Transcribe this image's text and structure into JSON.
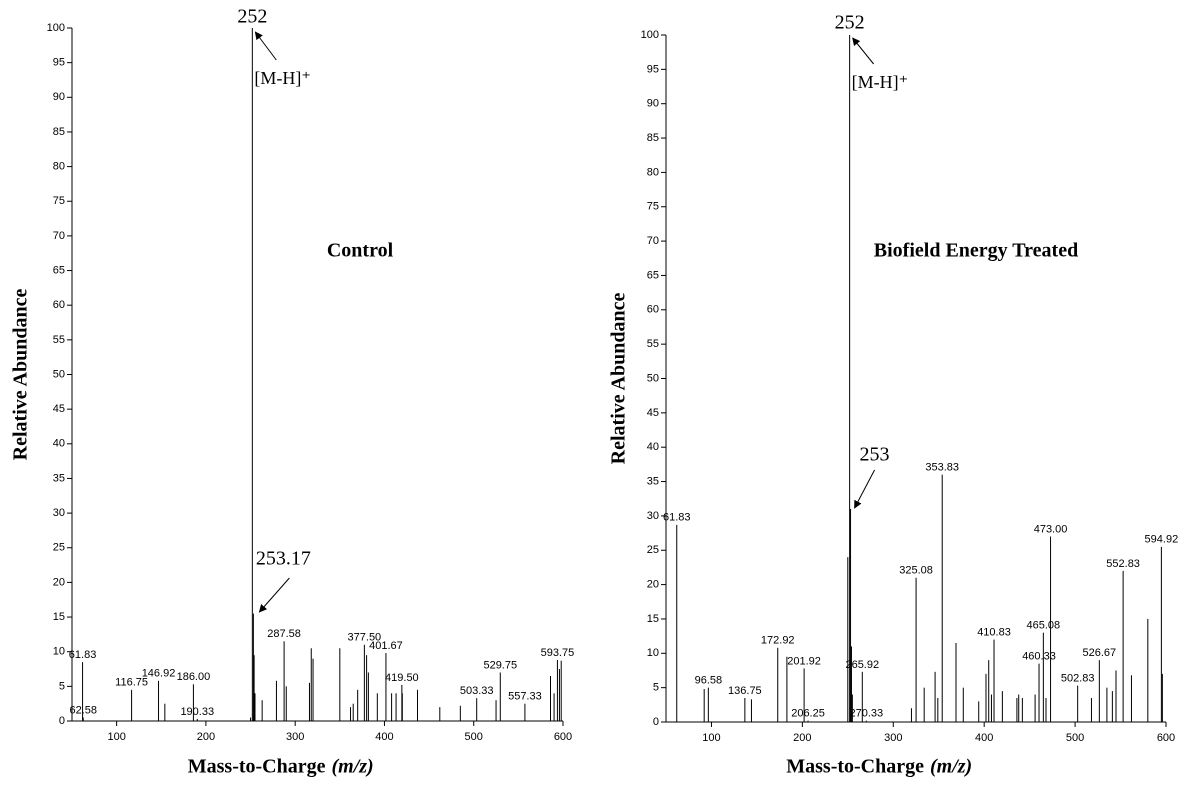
{
  "chart_data": [
    {
      "type": "stem",
      "subtitle": "Control",
      "annotation": "[M-H]⁺",
      "xlabel": "Mass-to-Charge",
      "xunit": "(m/z)",
      "ylabel": "Relative Abundance",
      "xlim": [
        50,
        600
      ],
      "ylim": [
        0,
        100
      ],
      "xticks": [
        100,
        200,
        300,
        400,
        500,
        600
      ],
      "yticks": [
        0,
        5,
        10,
        15,
        20,
        25,
        30,
        35,
        40,
        45,
        50,
        55,
        60,
        65,
        70,
        75,
        80,
        85,
        90,
        95,
        100
      ],
      "series": [
        {
          "color": "#000000",
          "x": [
            252,
            253.17
          ],
          "values": [
            100,
            15.5
          ]
        },
        {
          "color": "#000000",
          "x": [
            61.83,
            62.58,
            116.75,
            146.92,
            186,
            190.33,
            287.58,
            377.5,
            401.67,
            419.5,
            503.33,
            529.75,
            557.33,
            593.75
          ],
          "x_labels": [
            "61.83",
            "62.58",
            "116.75",
            "146.92",
            "186.00",
            "190.33",
            "287.58",
            "377.50",
            "401.67",
            "419.50",
            "503.33",
            "529.75",
            "557.33",
            "593.75"
          ],
          "values": [
            8.5,
            0.5,
            4.5,
            5.8,
            5.3,
            0.3,
            11.5,
            11,
            9.8,
            5.2,
            3.3,
            7,
            2.5,
            8.8
          ]
        },
        {
          "color": "#000000",
          "x": [
            154,
            250,
            254,
            255,
            263,
            279,
            290,
            316,
            318,
            320,
            350,
            362,
            365,
            370,
            380,
            382,
            392,
            408,
            413,
            420,
            437,
            462,
            485,
            525,
            586,
            590,
            596,
            598
          ],
          "values": [
            2.5,
            0.5,
            9.5,
            4,
            3,
            5.8,
            5,
            5.5,
            10.5,
            9,
            10.5,
            2,
            2.5,
            4.5,
            9.5,
            7,
            4,
            4,
            4,
            4,
            4.5,
            2,
            2.2,
            3,
            6.5,
            4,
            7.5,
            8.7
          ]
        }
      ]
    },
    {
      "type": "stem",
      "subtitle": "Biofield Energy Treated",
      "annotation": "[M-H]⁺",
      "xlabel": "Mass-to-Charge",
      "xunit": "(m/z)",
      "ylabel": "Relative Abundance",
      "xlim": [
        50,
        600
      ],
      "ylim": [
        0,
        100
      ],
      "xticks": [
        100,
        200,
        300,
        400,
        500,
        600
      ],
      "yticks": [
        0,
        5,
        10,
        15,
        20,
        25,
        30,
        35,
        40,
        45,
        50,
        55,
        60,
        65,
        70,
        75,
        80,
        85,
        90,
        95,
        100
      ],
      "series": [
        {
          "color": "#000000",
          "x": [
            252,
            253
          ],
          "values": [
            100,
            31
          ]
        },
        {
          "color": "#000000",
          "x": [
            61.83,
            96.58,
            136.75,
            172.92,
            201.92,
            206.25,
            265.92,
            270.33,
            325.08,
            353.83,
            410.83,
            460.33,
            465.08,
            473,
            502.83,
            526.67,
            552.83,
            594.92
          ],
          "x_labels": [
            "61.83",
            "96.58",
            "136.75",
            "172.92",
            "201.92",
            "206.25",
            "265.92",
            "270.33",
            "325.08",
            "353.83",
            "410.83",
            "460.33",
            "465.08",
            "473.00",
            "502.83",
            "526.67",
            "552.83",
            "594.92"
          ],
          "values": [
            28.7,
            5,
            3.5,
            10.8,
            7.8,
            0.2,
            7.3,
            0.2,
            21,
            36,
            12,
            8.5,
            13,
            27,
            5.3,
            9,
            22,
            25.5
          ]
        },
        {
          "color": "#000000",
          "x": [
            92,
            144,
            183,
            250,
            254,
            255,
            320,
            334,
            346,
            349,
            369,
            377,
            394,
            402,
            405,
            408,
            420,
            436,
            438,
            442,
            456,
            468,
            518,
            535,
            541,
            545,
            562,
            580,
            596
          ],
          "values": [
            4.8,
            3.3,
            9.5,
            24,
            11,
            4,
            2,
            5,
            7.3,
            3.5,
            11.5,
            5,
            3,
            7,
            9,
            4,
            4.5,
            3.5,
            4,
            3.5,
            4,
            3.5,
            3.5,
            5,
            4.5,
            7.5,
            6.8,
            15,
            7
          ]
        }
      ]
    }
  ]
}
